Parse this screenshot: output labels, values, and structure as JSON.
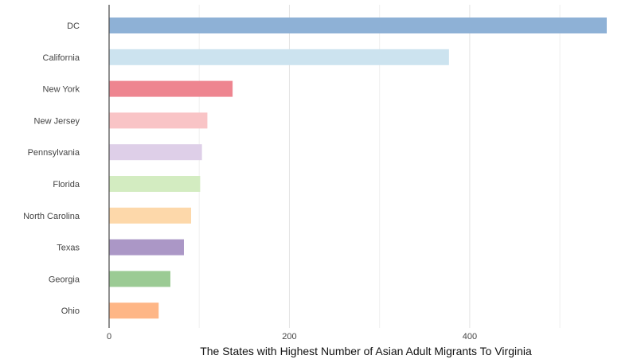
{
  "chart_data": {
    "type": "bar",
    "orientation": "horizontal",
    "title": "",
    "xlabel": "The States with Highest Number of Asian Adult Migrants To Virginia",
    "ylabel": "",
    "categories": [
      "DC",
      "California",
      "New York",
      "New Jersey",
      "Pennsylvania",
      "Florida",
      "North Carolina",
      "Texas",
      "Georgia",
      "Ohio"
    ],
    "values": [
      552,
      377,
      137,
      109,
      103,
      101,
      91,
      83,
      68,
      55
    ],
    "colors": [
      "#8eb1d6",
      "#cce3ef",
      "#ee8590",
      "#f9c4c6",
      "#decfe8",
      "#d3ecc1",
      "#fdd8aa",
      "#ab97c6",
      "#9bcb94",
      "#feb686"
    ],
    "xticks": [
      0,
      200,
      400
    ],
    "xlim": [
      0,
      552
    ],
    "grid": true,
    "legend": "none"
  }
}
